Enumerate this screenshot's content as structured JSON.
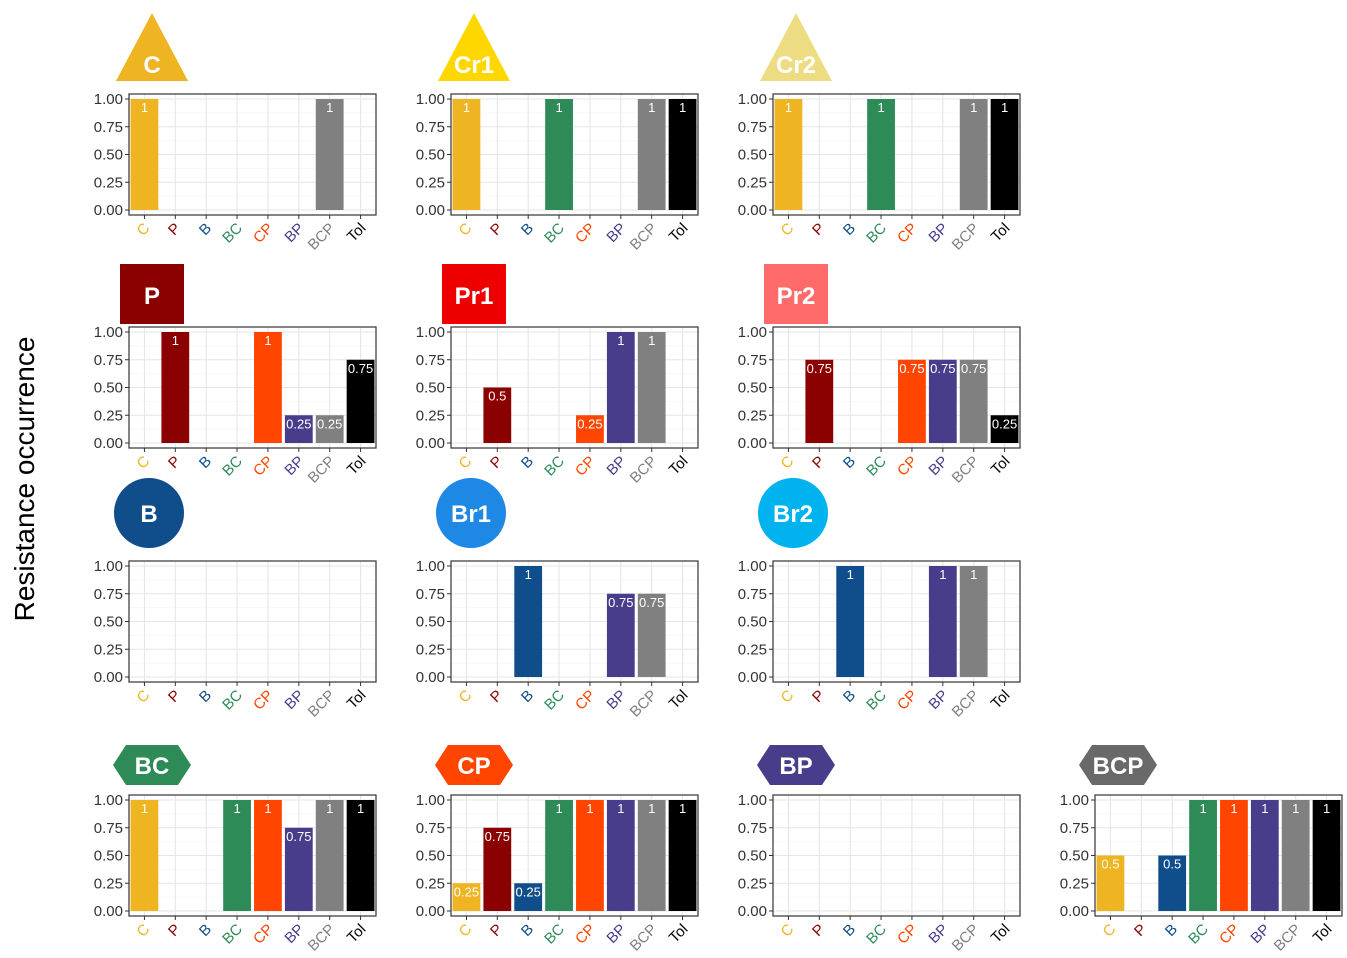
{
  "figure": {
    "ylabel": "Resistance occurrence"
  },
  "colors": {
    "C": "#EEB422",
    "P": "#8B0000",
    "B": "#104E8B",
    "BC": "#2E8B57",
    "CP": "#FF4500",
    "BP": "#483D8B",
    "BCP": "#808080",
    "Tol": "#000000"
  },
  "chart_data": [
    {
      "type": "bar",
      "title": "C",
      "badge_shape": "triangle",
      "badge_color": "#EEB422",
      "categories": [
        "C",
        "P",
        "B",
        "BC",
        "CP",
        "BP",
        "BCP",
        "Tol"
      ],
      "values": [
        1,
        0,
        0,
        0,
        0,
        0,
        1,
        0
      ],
      "labels": [
        "1",
        "",
        "",
        "",
        "",
        "",
        "1",
        ""
      ],
      "yticks": [
        "0.00",
        "0.25",
        "0.50",
        "0.75",
        "1.00"
      ],
      "ylim": [
        0,
        1
      ]
    },
    {
      "type": "bar",
      "title": "Cr1",
      "badge_shape": "triangle",
      "badge_color": "#FFD700",
      "categories": [
        "C",
        "P",
        "B",
        "BC",
        "CP",
        "BP",
        "BCP",
        "Tol"
      ],
      "values": [
        1,
        0,
        0,
        1,
        0,
        0,
        1,
        1
      ],
      "labels": [
        "1",
        "",
        "",
        "1",
        "",
        "",
        "1",
        "1"
      ],
      "yticks": [
        "0.00",
        "0.25",
        "0.50",
        "0.75",
        "1.00"
      ],
      "ylim": [
        0,
        1
      ]
    },
    {
      "type": "bar",
      "title": "Cr2",
      "badge_shape": "triangle",
      "badge_color": "#EEDC82",
      "categories": [
        "C",
        "P",
        "B",
        "BC",
        "CP",
        "BP",
        "BCP",
        "Tol"
      ],
      "values": [
        1,
        0,
        0,
        1,
        0,
        0,
        1,
        1
      ],
      "labels": [
        "1",
        "",
        "",
        "1",
        "",
        "",
        "1",
        "1"
      ],
      "yticks": [
        "0.00",
        "0.25",
        "0.50",
        "0.75",
        "1.00"
      ],
      "ylim": [
        0,
        1
      ]
    },
    {
      "type": "bar",
      "title": "P",
      "badge_shape": "square",
      "badge_color": "#8B0000",
      "categories": [
        "C",
        "P",
        "B",
        "BC",
        "CP",
        "BP",
        "BCP",
        "Tol"
      ],
      "values": [
        0,
        1,
        0,
        0,
        1,
        0.25,
        0.25,
        0.75
      ],
      "labels": [
        "",
        "1",
        "",
        "",
        "1",
        "0.25",
        "0.25",
        "0.75"
      ],
      "yticks": [
        "0.00",
        "0.25",
        "0.50",
        "0.75",
        "1.00"
      ],
      "ylim": [
        0,
        1
      ]
    },
    {
      "type": "bar",
      "title": "Pr1",
      "badge_shape": "square",
      "badge_color": "#EE0000",
      "categories": [
        "C",
        "P",
        "B",
        "BC",
        "CP",
        "BP",
        "BCP",
        "Tol"
      ],
      "values": [
        0,
        0.5,
        0,
        0,
        0.25,
        1,
        1,
        0
      ],
      "labels": [
        "",
        "0.5",
        "",
        "",
        "0.25",
        "1",
        "1",
        ""
      ],
      "yticks": [
        "0.00",
        "0.25",
        "0.50",
        "0.75",
        "1.00"
      ],
      "ylim": [
        0,
        1
      ]
    },
    {
      "type": "bar",
      "title": "Pr2",
      "badge_shape": "square",
      "badge_color": "#FF6A6A",
      "categories": [
        "C",
        "P",
        "B",
        "BC",
        "CP",
        "BP",
        "BCP",
        "Tol"
      ],
      "values": [
        0,
        0.75,
        0,
        0,
        0.75,
        0.75,
        0.75,
        0.25
      ],
      "labels": [
        "",
        "0.75",
        "",
        "",
        "0.75",
        "0.75",
        "0.75",
        "0.25"
      ],
      "yticks": [
        "0.00",
        "0.25",
        "0.50",
        "0.75",
        "1.00"
      ],
      "ylim": [
        0,
        1
      ]
    },
    {
      "type": "bar",
      "title": "B",
      "badge_shape": "circle",
      "badge_color": "#104E8B",
      "categories": [
        "C",
        "P",
        "B",
        "BC",
        "CP",
        "BP",
        "BCP",
        "Tol"
      ],
      "values": [
        0,
        0,
        0,
        0,
        0,
        0,
        0,
        0
      ],
      "labels": [
        "",
        "",
        "",
        "",
        "",
        "",
        "",
        ""
      ],
      "yticks": [
        "0.00",
        "0.25",
        "0.50",
        "0.75",
        "1.00"
      ],
      "ylim": [
        0,
        1
      ]
    },
    {
      "type": "bar",
      "title": "Br1",
      "badge_shape": "circle",
      "badge_color": "#1E88E5",
      "categories": [
        "C",
        "P",
        "B",
        "BC",
        "CP",
        "BP",
        "BCP",
        "Tol"
      ],
      "values": [
        0,
        0,
        1,
        0,
        0,
        0.75,
        0.75,
        0
      ],
      "labels": [
        "",
        "",
        "1",
        "",
        "",
        "0.75",
        "0.75",
        ""
      ],
      "yticks": [
        "0.00",
        "0.25",
        "0.50",
        "0.75",
        "1.00"
      ],
      "ylim": [
        0,
        1
      ]
    },
    {
      "type": "bar",
      "title": "Br2",
      "badge_shape": "circle",
      "badge_color": "#00B2EE",
      "categories": [
        "C",
        "P",
        "B",
        "BC",
        "CP",
        "BP",
        "BCP",
        "Tol"
      ],
      "values": [
        0,
        0,
        1,
        0,
        0,
        1,
        1,
        0
      ],
      "labels": [
        "",
        "",
        "1",
        "",
        "",
        "1",
        "1",
        ""
      ],
      "yticks": [
        "0.00",
        "0.25",
        "0.50",
        "0.75",
        "1.00"
      ],
      "ylim": [
        0,
        1
      ]
    },
    {
      "type": "bar",
      "title": "BC",
      "badge_shape": "hexagon",
      "badge_color": "#2E8B57",
      "categories": [
        "C",
        "P",
        "B",
        "BC",
        "CP",
        "BP",
        "BCP",
        "Tol"
      ],
      "values": [
        1,
        0,
        0,
        1,
        1,
        0.75,
        1,
        1
      ],
      "labels": [
        "1",
        "",
        "",
        "1",
        "1",
        "0.75",
        "1",
        "1"
      ],
      "yticks": [
        "0.00",
        "0.25",
        "0.50",
        "0.75",
        "1.00"
      ],
      "ylim": [
        0,
        1
      ]
    },
    {
      "type": "bar",
      "title": "CP",
      "badge_shape": "hexagon",
      "badge_color": "#FF4500",
      "categories": [
        "C",
        "P",
        "B",
        "BC",
        "CP",
        "BP",
        "BCP",
        "Tol"
      ],
      "values": [
        0.25,
        0.75,
        0.25,
        1,
        1,
        1,
        1,
        1
      ],
      "labels": [
        "0.25",
        "0.75",
        "0.25",
        "1",
        "1",
        "1",
        "1",
        "1"
      ],
      "yticks": [
        "0.00",
        "0.25",
        "0.50",
        "0.75",
        "1.00"
      ],
      "ylim": [
        0,
        1
      ]
    },
    {
      "type": "bar",
      "title": "BP",
      "badge_shape": "hexagon",
      "badge_color": "#483D8B",
      "categories": [
        "C",
        "P",
        "B",
        "BC",
        "CP",
        "BP",
        "BCP",
        "Tol"
      ],
      "values": [
        0,
        0,
        0,
        0,
        0,
        0,
        0,
        0
      ],
      "labels": [
        "",
        "",
        "",
        "",
        "",
        "",
        "",
        ""
      ],
      "yticks": [
        "0.00",
        "0.25",
        "0.50",
        "0.75",
        "1.00"
      ],
      "ylim": [
        0,
        1
      ]
    },
    {
      "type": "bar",
      "title": "BCP",
      "badge_shape": "hexagon",
      "badge_color": "#696969",
      "categories": [
        "C",
        "P",
        "B",
        "BC",
        "CP",
        "BP",
        "BCP",
        "Tol"
      ],
      "values": [
        0.5,
        0,
        0.5,
        1,
        1,
        1,
        1,
        1
      ],
      "labels": [
        "0.5",
        "",
        "0.5",
        "1",
        "1",
        "1",
        "1",
        "1"
      ],
      "yticks": [
        "0.00",
        "0.25",
        "0.50",
        "0.75",
        "1.00"
      ],
      "ylim": [
        0,
        1
      ]
    }
  ]
}
